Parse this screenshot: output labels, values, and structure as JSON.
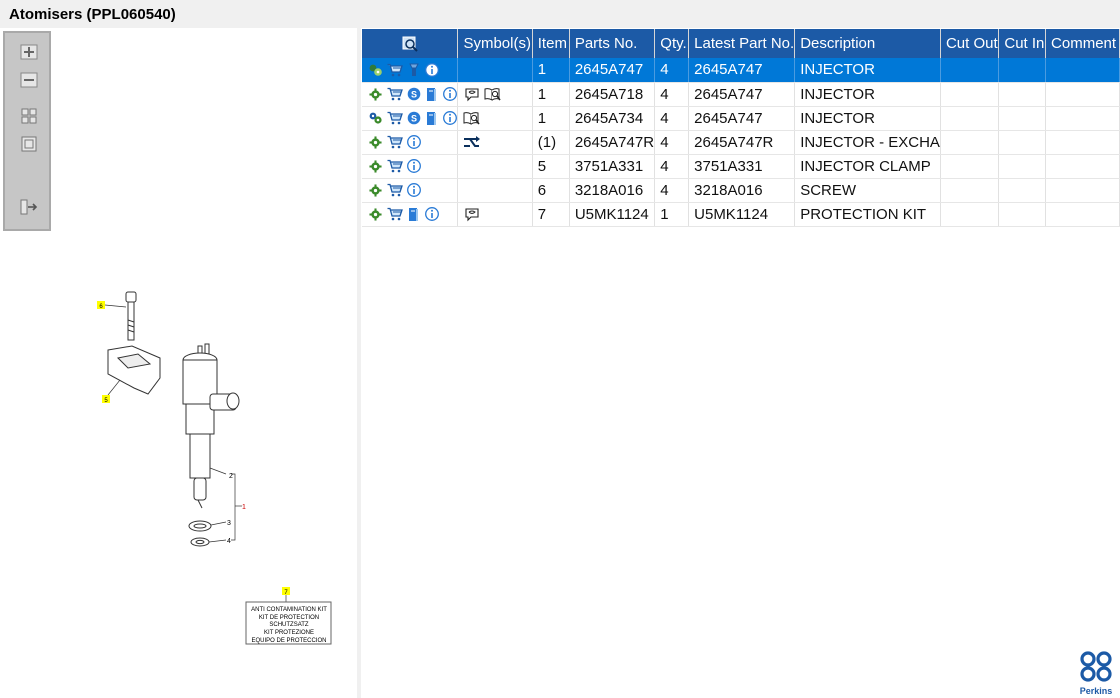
{
  "window": {
    "title": "Atomisers (PPL060540)"
  },
  "toolbox": {
    "zoom_in": "zoom-in",
    "zoom_out": "zoom-out",
    "fit": "fit-view",
    "reset": "reset-view",
    "export": "export"
  },
  "table": {
    "columns": [
      "Symbol(s)",
      "Item",
      "Parts No.",
      "Qty.",
      "Latest Part No.",
      "Description",
      "Cut Out",
      "Cut In",
      "Comment"
    ],
    "rows": [
      {
        "icons": [
          "settings-users",
          "cart",
          "flashlight",
          "info"
        ],
        "symbols": [],
        "item": "1",
        "part": "2645A747",
        "qty": "4",
        "latest": "2645A747",
        "desc": "INJECTOR",
        "cut_out": "",
        "cut_in": "",
        "comment": "",
        "selected": true
      },
      {
        "icons": [
          "gear",
          "cart",
          "s-badge",
          "book",
          "info"
        ],
        "symbols": [
          "speech",
          "manual"
        ],
        "item": "1",
        "part": "2645A718",
        "qty": "4",
        "latest": "2645A747",
        "desc": "INJECTOR",
        "cut_out": "",
        "cut_in": "",
        "comment": "",
        "selected": false
      },
      {
        "icons": [
          "gears",
          "cart",
          "s-badge",
          "book",
          "info"
        ],
        "symbols": [
          "manual"
        ],
        "item": "1",
        "part": "2645A734",
        "qty": "4",
        "latest": "2645A747",
        "desc": "INJECTOR",
        "cut_out": "",
        "cut_in": "",
        "comment": "",
        "selected": false
      },
      {
        "icons": [
          "gear",
          "cart",
          "info"
        ],
        "symbols": [
          "exchange"
        ],
        "item": "(1)",
        "part": "2645A747R",
        "qty": "4",
        "latest": "2645A747R",
        "desc": "INJECTOR - EXCHA",
        "cut_out": "",
        "cut_in": "",
        "comment": "",
        "selected": false
      },
      {
        "icons": [
          "gear",
          "cart",
          "info"
        ],
        "symbols": [],
        "item": "5",
        "part": "3751A331",
        "qty": "4",
        "latest": "3751A331",
        "desc": "INJECTOR CLAMP",
        "cut_out": "",
        "cut_in": "",
        "comment": "",
        "selected": false
      },
      {
        "icons": [
          "gear",
          "cart",
          "info"
        ],
        "symbols": [],
        "item": "6",
        "part": "3218A016",
        "qty": "4",
        "latest": "3218A016",
        "desc": "SCREW",
        "cut_out": "",
        "cut_in": "",
        "comment": "",
        "selected": false
      },
      {
        "icons": [
          "gear",
          "cart",
          "book",
          "info"
        ],
        "symbols": [
          "speech"
        ],
        "item": "7",
        "part": "U5MK1124",
        "qty": "1",
        "latest": "U5MK1124",
        "desc": "PROTECTION KIT",
        "cut_out": "",
        "cut_in": "",
        "comment": "",
        "selected": false
      }
    ]
  },
  "diagram": {
    "callouts": [
      "6",
      "5",
      "2",
      "3",
      "4",
      "1",
      "7"
    ],
    "kit_label": [
      "ANTI CONTAMINATION KIT",
      "KIT DE PROTECTION",
      "SCHUTZSATZ",
      "KIT PROTEZIONE",
      "EQUIPO DE PROTECCION"
    ]
  },
  "brand": {
    "name": "Perkins",
    "color": "#1c5aa6"
  },
  "colors": {
    "header": "#1c5aa6",
    "selected": "#0078d7",
    "accent": "#3a8a2a"
  }
}
